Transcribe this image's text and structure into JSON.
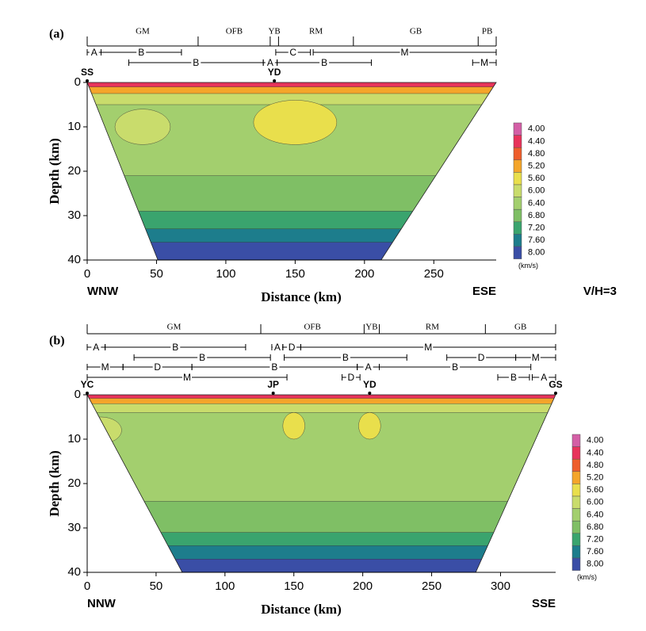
{
  "panels": [
    {
      "type": "contour",
      "label": "(a)",
      "provinces": [
        {
          "name": "GM",
          "from": 0,
          "to": 80
        },
        {
          "name": "OFB",
          "from": 80,
          "to": 132
        },
        {
          "name": "YB",
          "from": 132,
          "to": 138
        },
        {
          "name": "RM",
          "from": 138,
          "to": 192
        },
        {
          "name": "GB",
          "from": 192,
          "to": 282
        },
        {
          "name": "PB",
          "from": 282,
          "to": 295
        }
      ],
      "segment_rows": [
        [
          {
            "name": "A",
            "from": 0,
            "to": 10
          },
          {
            "name": "B",
            "from": 10,
            "to": 68
          },
          {
            "name": "C",
            "from": 136,
            "to": 161
          },
          {
            "name": "M",
            "from": 163,
            "to": 295
          }
        ],
        [
          {
            "name": "B",
            "from": 30,
            "to": 127
          },
          {
            "name": "A",
            "from": 127,
            "to": 137
          },
          {
            "name": "B",
            "from": 137,
            "to": 205
          },
          {
            "name": "M",
            "from": 278,
            "to": 295
          }
        ]
      ],
      "stations": [
        {
          "name": "SS",
          "x": 0
        },
        {
          "name": "YD",
          "x": 135
        }
      ],
      "xlabel": "Distance (km)",
      "ylabel": "Depth (km)",
      "xlim": [
        0,
        295
      ],
      "xticks": [
        0,
        50,
        100,
        150,
        200,
        250
      ],
      "ylim": [
        0,
        40
      ],
      "yticks": [
        0,
        10,
        20,
        30,
        40
      ],
      "left_end": "WNW",
      "right_end": "ESE",
      "note": "V/H=3",
      "colorbar": {
        "unit": "(km/s)",
        "ticks": [
          {
            "value": 4,
            "label": "4.00"
          },
          {
            "value": 4.4,
            "label": "4.40"
          },
          {
            "value": 4.8,
            "label": "4.80"
          },
          {
            "value": 5.2,
            "label": "5.20"
          },
          {
            "value": 5.6,
            "label": "5.60"
          },
          {
            "value": 6,
            "label": "6.00"
          },
          {
            "value": 6.4,
            "label": "6.40"
          },
          {
            "value": 6.8,
            "label": "6.80"
          },
          {
            "value": 7.2,
            "label": "7.20"
          },
          {
            "value": 7.6,
            "label": "7.60"
          },
          {
            "value": 8,
            "label": "8.00"
          }
        ],
        "colors": [
          "#d45fa6",
          "#e8335b",
          "#ee5e2c",
          "#f4a52a",
          "#e9df4c",
          "#c9dc6c",
          "#a3cf6e",
          "#7fbf65",
          "#3aa46e",
          "#1d7d8c",
          "#3a4ea6"
        ]
      }
    },
    {
      "type": "contour",
      "label": "(b)",
      "provinces": [
        {
          "name": "GM",
          "from": 0,
          "to": 126
        },
        {
          "name": "OFB",
          "from": 126,
          "to": 201
        },
        {
          "name": "YB",
          "from": 201,
          "to": 212
        },
        {
          "name": "RM",
          "from": 212,
          "to": 289
        },
        {
          "name": "GB",
          "from": 289,
          "to": 340
        }
      ],
      "segment_rows": [
        [
          {
            "name": "A",
            "from": 0,
            "to": 13
          },
          {
            "name": "B",
            "from": 13,
            "to": 115
          },
          {
            "name": "A",
            "from": 134,
            "to": 142
          },
          {
            "name": "D",
            "from": 142,
            "to": 155
          },
          {
            "name": "M",
            "from": 155,
            "to": 340
          }
        ],
        [
          {
            "name": "B",
            "from": 34,
            "to": 133
          },
          {
            "name": "B",
            "from": 143,
            "to": 232
          },
          {
            "name": "D",
            "from": 261,
            "to": 311
          },
          {
            "name": "M",
            "from": 311,
            "to": 340
          }
        ],
        [
          {
            "name": "M",
            "from": 0,
            "to": 26
          },
          {
            "name": "D",
            "from": 26,
            "to": 76
          },
          {
            "name": "B",
            "from": 76,
            "to": 196
          },
          {
            "name": "A",
            "from": 196,
            "to": 212
          },
          {
            "name": "B",
            "from": 212,
            "to": 322
          }
        ],
        [
          {
            "name": "M",
            "from": 0,
            "to": 145
          },
          {
            "name": "D",
            "from": 185,
            "to": 198
          },
          {
            "name": "B",
            "from": 298,
            "to": 321
          },
          {
            "name": "A",
            "from": 323,
            "to": 340
          }
        ]
      ],
      "stations": [
        {
          "name": "YC",
          "x": 0
        },
        {
          "name": "JP",
          "x": 135
        },
        {
          "name": "YD",
          "x": 205
        },
        {
          "name": "GS",
          "x": 340
        }
      ],
      "xlabel": "Distance (km)",
      "ylabel": "Depth (km)",
      "xlim": [
        0,
        340
      ],
      "xticks": [
        0,
        50,
        100,
        150,
        200,
        250,
        300
      ],
      "ylim": [
        0,
        40
      ],
      "yticks": [
        0,
        10,
        20,
        30,
        40
      ],
      "left_end": "NNW",
      "right_end": "SSE",
      "colorbar": {
        "unit": "(km/s)",
        "ticks": [
          {
            "value": 4,
            "label": "4.00"
          },
          {
            "value": 4.4,
            "label": "4.40"
          },
          {
            "value": 4.8,
            "label": "4.80"
          },
          {
            "value": 5.2,
            "label": "5.20"
          },
          {
            "value": 5.6,
            "label": "5.60"
          },
          {
            "value": 6,
            "label": "6.00"
          },
          {
            "value": 6.4,
            "label": "6.40"
          },
          {
            "value": 6.8,
            "label": "6.80"
          },
          {
            "value": 7.2,
            "label": "7.20"
          },
          {
            "value": 7.6,
            "label": "7.60"
          },
          {
            "value": 8,
            "label": "8.00"
          }
        ],
        "colors": [
          "#d45fa6",
          "#e8335b",
          "#ee5e2c",
          "#f4a52a",
          "#e9df4c",
          "#c9dc6c",
          "#a3cf6e",
          "#7fbf65",
          "#3aa46e",
          "#1d7d8c",
          "#3a4ea6"
        ]
      }
    }
  ]
}
